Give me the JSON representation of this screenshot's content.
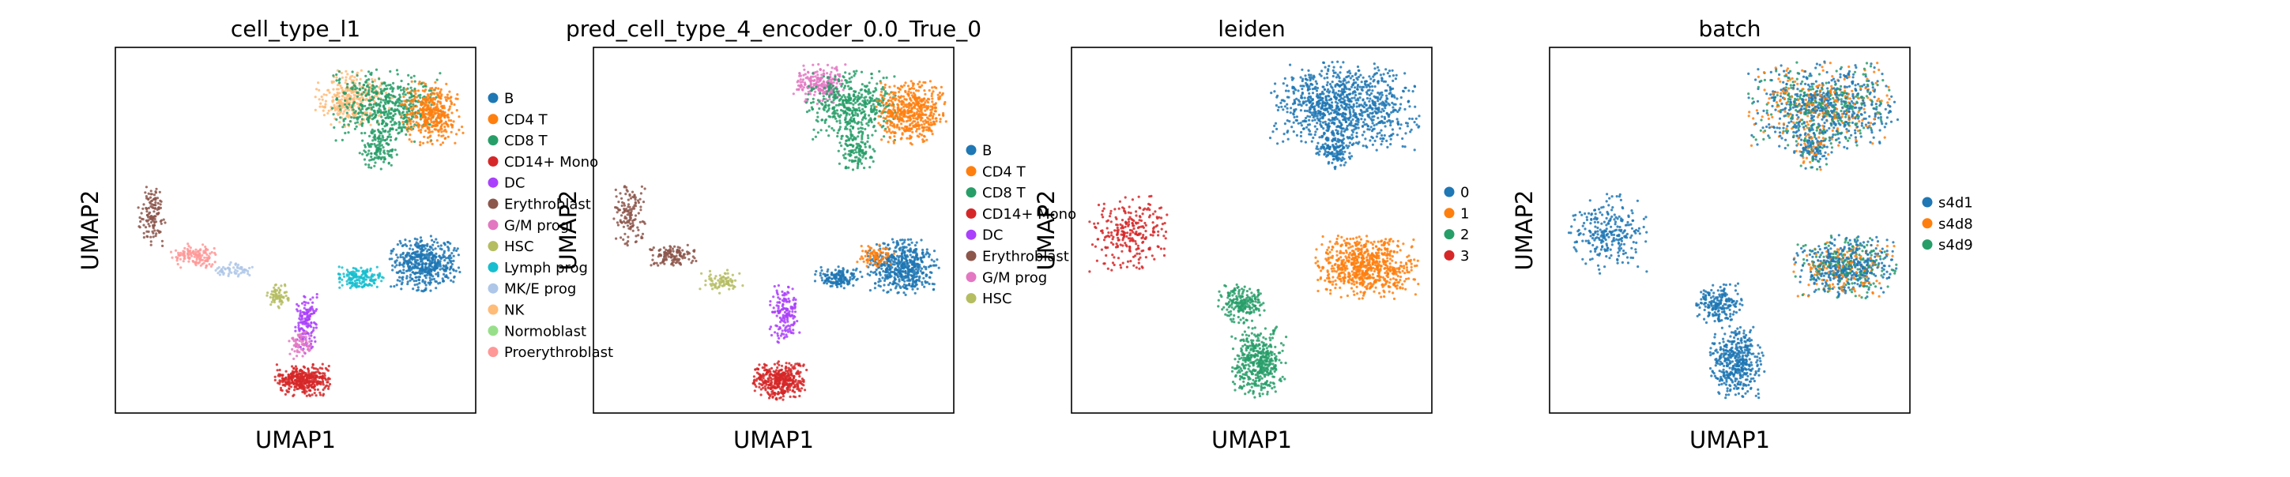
{
  "chart_data": [
    {
      "type": "scatter",
      "title": "cell_type_l1",
      "xlabel": "UMAP1",
      "ylabel": "UMAP2",
      "grid": false,
      "legend_position": "right",
      "legend": [
        {
          "label": "B",
          "color": "#1f77b4"
        },
        {
          "label": "CD4 T",
          "color": "#ff7f0e"
        },
        {
          "label": "CD8 T",
          "color": "#279e68"
        },
        {
          "label": "CD14+ Mono",
          "color": "#d62728"
        },
        {
          "label": "DC",
          "color": "#aa40fc"
        },
        {
          "label": "Erythroblast",
          "color": "#8c564b"
        },
        {
          "label": "G/M prog",
          "color": "#e377c2"
        },
        {
          "label": "HSC",
          "color": "#b5bd61"
        },
        {
          "label": "Lymph prog",
          "color": "#17becf"
        },
        {
          "label": "MK/E prog",
          "color": "#aec7e8"
        },
        {
          "label": "NK",
          "color": "#ffbb78"
        },
        {
          "label": "Normoblast",
          "color": "#98df8a"
        },
        {
          "label": "Proerythroblast",
          "color": "#ff9896"
        }
      ],
      "clusters": [
        {
          "label": "NK",
          "cx": 0.66,
          "cy": 0.86,
          "rx": 0.1,
          "ry": 0.07,
          "n": 320
        },
        {
          "label": "CD8 T",
          "cx": 0.75,
          "cy": 0.84,
          "rx": 0.14,
          "ry": 0.09,
          "n": 520
        },
        {
          "label": "CD4 T",
          "cx": 0.88,
          "cy": 0.82,
          "rx": 0.08,
          "ry": 0.08,
          "n": 380
        },
        {
          "label": "CD8 T",
          "cx": 0.73,
          "cy": 0.72,
          "rx": 0.05,
          "ry": 0.05,
          "n": 120
        },
        {
          "label": "B",
          "cx": 0.86,
          "cy": 0.41,
          "rx": 0.09,
          "ry": 0.07,
          "n": 480
        },
        {
          "label": "Lymph prog",
          "cx": 0.68,
          "cy": 0.37,
          "rx": 0.06,
          "ry": 0.03,
          "n": 160
        },
        {
          "label": "Erythroblast",
          "cx": 0.1,
          "cy": 0.54,
          "rx": 0.04,
          "ry": 0.08,
          "n": 130
        },
        {
          "label": "Proerythroblast",
          "cx": 0.22,
          "cy": 0.43,
          "rx": 0.06,
          "ry": 0.03,
          "n": 130
        },
        {
          "label": "MK/E prog",
          "cx": 0.33,
          "cy": 0.39,
          "rx": 0.05,
          "ry": 0.02,
          "n": 60
        },
        {
          "label": "HSC",
          "cx": 0.45,
          "cy": 0.32,
          "rx": 0.03,
          "ry": 0.03,
          "n": 70
        },
        {
          "label": "DC",
          "cx": 0.53,
          "cy": 0.25,
          "rx": 0.03,
          "ry": 0.08,
          "n": 140
        },
        {
          "label": "CD14+ Mono",
          "cx": 0.52,
          "cy": 0.09,
          "rx": 0.07,
          "ry": 0.04,
          "n": 380
        },
        {
          "label": "G/M prog",
          "cx": 0.51,
          "cy": 0.19,
          "rx": 0.03,
          "ry": 0.04,
          "n": 60
        }
      ]
    },
    {
      "type": "scatter",
      "title": "pred_cell_type_4_encoder_0.0_True_0",
      "xlabel": "UMAP1",
      "ylabel": "UMAP2",
      "grid": false,
      "legend_position": "right",
      "legend": [
        {
          "label": "B",
          "color": "#1f77b4"
        },
        {
          "label": "CD4 T",
          "color": "#ff7f0e"
        },
        {
          "label": "CD8 T",
          "color": "#279e68"
        },
        {
          "label": "CD14+ Mono",
          "color": "#d62728"
        },
        {
          "label": "DC",
          "color": "#aa40fc"
        },
        {
          "label": "Erythroblast",
          "color": "#8c564b"
        },
        {
          "label": "G/M prog",
          "color": "#e377c2"
        },
        {
          "label": "HSC",
          "color": "#b5bd61"
        }
      ],
      "clusters": [
        {
          "label": "G/M prog",
          "cx": 0.63,
          "cy": 0.9,
          "rx": 0.07,
          "ry": 0.05,
          "n": 220
        },
        {
          "label": "CD8 T",
          "cx": 0.72,
          "cy": 0.84,
          "rx": 0.12,
          "ry": 0.09,
          "n": 460
        },
        {
          "label": "CD4 T",
          "cx": 0.88,
          "cy": 0.82,
          "rx": 0.09,
          "ry": 0.08,
          "n": 480
        },
        {
          "label": "CD8 T",
          "cx": 0.73,
          "cy": 0.72,
          "rx": 0.05,
          "ry": 0.05,
          "n": 120
        },
        {
          "label": "B",
          "cx": 0.86,
          "cy": 0.4,
          "rx": 0.09,
          "ry": 0.07,
          "n": 520
        },
        {
          "label": "B",
          "cx": 0.68,
          "cy": 0.37,
          "rx": 0.06,
          "ry": 0.03,
          "n": 160
        },
        {
          "label": "CD4 T",
          "cx": 0.78,
          "cy": 0.43,
          "rx": 0.05,
          "ry": 0.03,
          "n": 80
        },
        {
          "label": "Erythroblast",
          "cx": 0.1,
          "cy": 0.54,
          "rx": 0.04,
          "ry": 0.08,
          "n": 130
        },
        {
          "label": "Erythroblast",
          "cx": 0.22,
          "cy": 0.43,
          "rx": 0.06,
          "ry": 0.03,
          "n": 130
        },
        {
          "label": "HSC",
          "cx": 0.36,
          "cy": 0.36,
          "rx": 0.06,
          "ry": 0.03,
          "n": 80
        },
        {
          "label": "DC",
          "cx": 0.53,
          "cy": 0.27,
          "rx": 0.04,
          "ry": 0.08,
          "n": 160
        },
        {
          "label": "CD14+ Mono",
          "cx": 0.52,
          "cy": 0.09,
          "rx": 0.07,
          "ry": 0.05,
          "n": 400
        }
      ]
    },
    {
      "type": "scatter",
      "title": "leiden",
      "xlabel": "UMAP1",
      "ylabel": "UMAP2",
      "grid": false,
      "legend_position": "right",
      "legend": [
        {
          "label": "0",
          "color": "#1f77b4"
        },
        {
          "label": "1",
          "color": "#ff7f0e"
        },
        {
          "label": "2",
          "color": "#279e68"
        },
        {
          "label": "3",
          "color": "#d62728"
        }
      ],
      "clusters": [
        {
          "label": "0",
          "cx": 0.76,
          "cy": 0.84,
          "rx": 0.19,
          "ry": 0.11,
          "n": 950
        },
        {
          "label": "0",
          "cx": 0.73,
          "cy": 0.72,
          "rx": 0.05,
          "ry": 0.05,
          "n": 140
        },
        {
          "label": "1",
          "cx": 0.82,
          "cy": 0.4,
          "rx": 0.13,
          "ry": 0.08,
          "n": 700
        },
        {
          "label": "3",
          "cx": 0.16,
          "cy": 0.49,
          "rx": 0.1,
          "ry": 0.1,
          "n": 260
        },
        {
          "label": "2",
          "cx": 0.47,
          "cy": 0.3,
          "rx": 0.06,
          "ry": 0.05,
          "n": 200
        },
        {
          "label": "2",
          "cx": 0.52,
          "cy": 0.14,
          "rx": 0.07,
          "ry": 0.09,
          "n": 420
        }
      ]
    },
    {
      "type": "scatter",
      "title": "batch",
      "xlabel": "UMAP1",
      "ylabel": "UMAP2",
      "grid": false,
      "legend_position": "right",
      "legend": [
        {
          "label": "s4d1",
          "color": "#1f77b4"
        },
        {
          "label": "s4d8",
          "color": "#ff7f0e"
        },
        {
          "label": "s4d9",
          "color": "#279e68"
        }
      ],
      "clusters": [
        {
          "label": "mixed",
          "cx": 0.76,
          "cy": 0.84,
          "rx": 0.19,
          "ry": 0.11,
          "n": 1000
        },
        {
          "label": "mixed",
          "cx": 0.73,
          "cy": 0.72,
          "rx": 0.05,
          "ry": 0.05,
          "n": 140
        },
        {
          "label": "mixed",
          "cx": 0.82,
          "cy": 0.4,
          "rx": 0.13,
          "ry": 0.08,
          "n": 700
        },
        {
          "label": "s4d1",
          "cx": 0.16,
          "cy": 0.49,
          "rx": 0.1,
          "ry": 0.1,
          "n": 260
        },
        {
          "label": "s4d1",
          "cx": 0.47,
          "cy": 0.3,
          "rx": 0.06,
          "ry": 0.05,
          "n": 200
        },
        {
          "label": "s4d1",
          "cx": 0.52,
          "cy": 0.14,
          "rx": 0.07,
          "ry": 0.09,
          "n": 420
        }
      ]
    }
  ]
}
